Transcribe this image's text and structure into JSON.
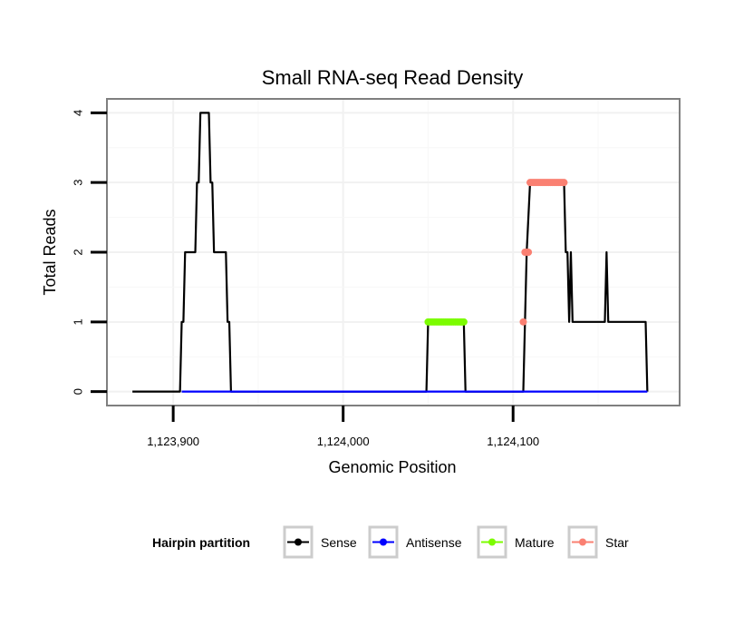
{
  "chart_data": {
    "type": "line",
    "title": "Small RNA-seq Read Density",
    "xlabel": "Genomic Position",
    "ylabel": "Total Reads",
    "xlim": [
      1123861,
      1124198
    ],
    "ylim": [
      -0.2,
      4.2
    ],
    "x_ticks": [
      1123900,
      1124000,
      1124100
    ],
    "x_tick_labels": [
      "1,123,900",
      "1,124,000",
      "1,124,100"
    ],
    "y_ticks": [
      0,
      1,
      2,
      3,
      4
    ],
    "y_tick_labels": [
      "0",
      "1",
      "2",
      "3",
      "4"
    ],
    "grid": true,
    "legend": {
      "title": "Hairpin partition",
      "position": "bottom",
      "entries": [
        {
          "name": "Sense",
          "color": "#000000"
        },
        {
          "name": "Antisense",
          "color": "#0000ff"
        },
        {
          "name": "Mature",
          "color": "#7cfc00"
        },
        {
          "name": "Star",
          "color": "#fa8072"
        }
      ]
    },
    "series": [
      {
        "name": "Sense",
        "color": "#000000",
        "type": "line",
        "points": [
          [
            1123876,
            0
          ],
          [
            1123904,
            0
          ],
          [
            1123905,
            1
          ],
          [
            1123906,
            1
          ],
          [
            1123907,
            2
          ],
          [
            1123913,
            2
          ],
          [
            1123914,
            3
          ],
          [
            1123915,
            3
          ],
          [
            1123916,
            4
          ],
          [
            1123921,
            4
          ],
          [
            1123922,
            3
          ],
          [
            1123923,
            3
          ],
          [
            1123924,
            2
          ],
          [
            1123931,
            2
          ],
          [
            1123932,
            1
          ],
          [
            1123933,
            1
          ],
          [
            1123934,
            0
          ],
          [
            1124049,
            0
          ],
          [
            1124050,
            1
          ],
          [
            1124071,
            1
          ],
          [
            1124072,
            0
          ],
          [
            1124106,
            0
          ],
          [
            1124107,
            1
          ],
          [
            1124108,
            2
          ],
          [
            1124110,
            3
          ],
          [
            1124130,
            3
          ],
          [
            1124131,
            2
          ],
          [
            1124132,
            2
          ],
          [
            1124133,
            1
          ],
          [
            1124134,
            2
          ],
          [
            1124135,
            1
          ],
          [
            1124154,
            1
          ],
          [
            1124155,
            2
          ],
          [
            1124156,
            1
          ],
          [
            1124178,
            1
          ],
          [
            1124179,
            0
          ]
        ]
      },
      {
        "name": "Antisense",
        "color": "#0000ff",
        "type": "line",
        "points": [
          [
            1123905,
            0
          ],
          [
            1124179,
            0
          ]
        ]
      },
      {
        "name": "Mature",
        "color": "#7cfc00",
        "type": "points",
        "points": [
          [
            1124050,
            1
          ],
          [
            1124051,
            1
          ],
          [
            1124052,
            1
          ],
          [
            1124053,
            1
          ],
          [
            1124054,
            1
          ],
          [
            1124055,
            1
          ],
          [
            1124056,
            1
          ],
          [
            1124057,
            1
          ],
          [
            1124058,
            1
          ],
          [
            1124059,
            1
          ],
          [
            1124060,
            1
          ],
          [
            1124061,
            1
          ],
          [
            1124062,
            1
          ],
          [
            1124063,
            1
          ],
          [
            1124064,
            1
          ],
          [
            1124065,
            1
          ],
          [
            1124066,
            1
          ],
          [
            1124067,
            1
          ],
          [
            1124068,
            1
          ],
          [
            1124069,
            1
          ],
          [
            1124070,
            1
          ],
          [
            1124071,
            1
          ]
        ]
      },
      {
        "name": "Star",
        "color": "#fa8072",
        "type": "points",
        "points": [
          [
            1124106,
            1
          ],
          [
            1124107,
            2
          ],
          [
            1124108,
            2
          ],
          [
            1124109,
            2
          ],
          [
            1124110,
            3
          ],
          [
            1124111,
            3
          ],
          [
            1124112,
            3
          ],
          [
            1124113,
            3
          ],
          [
            1124114,
            3
          ],
          [
            1124115,
            3
          ],
          [
            1124116,
            3
          ],
          [
            1124117,
            3
          ],
          [
            1124118,
            3
          ],
          [
            1124119,
            3
          ],
          [
            1124120,
            3
          ],
          [
            1124121,
            3
          ],
          [
            1124122,
            3
          ],
          [
            1124123,
            3
          ],
          [
            1124124,
            3
          ],
          [
            1124125,
            3
          ],
          [
            1124126,
            3
          ],
          [
            1124127,
            3
          ],
          [
            1124128,
            3
          ],
          [
            1124129,
            3
          ],
          [
            1124130,
            3
          ]
        ]
      }
    ]
  }
}
